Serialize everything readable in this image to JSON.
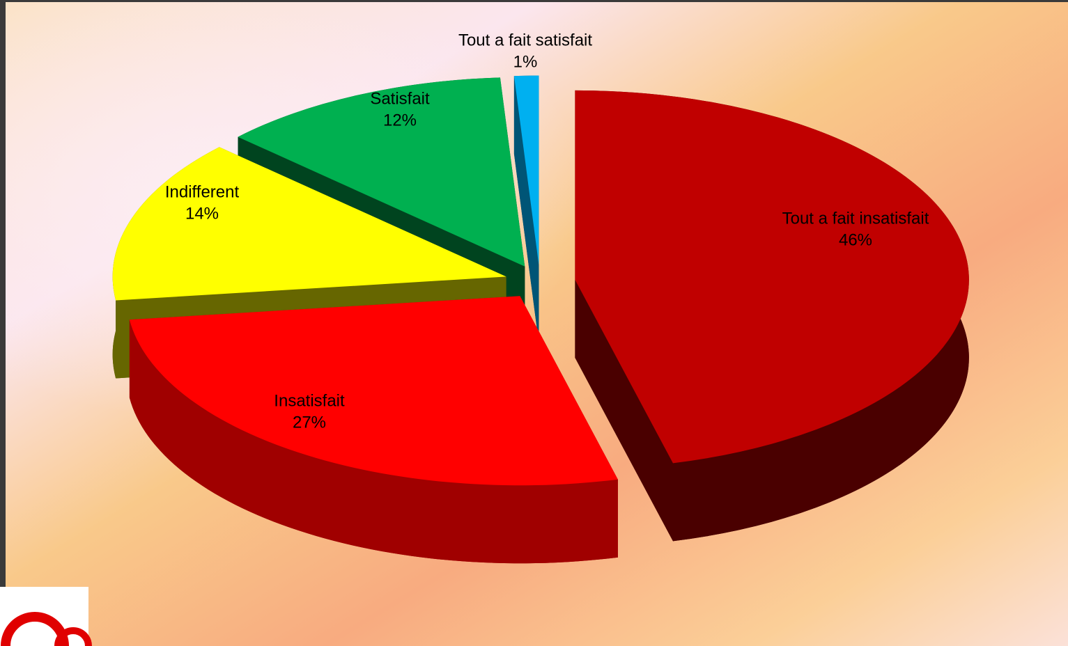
{
  "chart_data": {
    "type": "pie",
    "categories": [
      "Tout a fait insatisfait",
      "Insatisfait",
      "Indifferent",
      "Satisfait",
      "Tout a fait satisfait"
    ],
    "values": [
      46,
      27,
      14,
      12,
      1
    ],
    "value_labels": [
      "46%",
      "27%",
      "14%",
      "12%",
      "1%"
    ],
    "colors": [
      "#c00000",
      "#ff0000",
      "#ffff00",
      "#00b050",
      "#00b0f0"
    ],
    "side_colors": [
      "#4a0000",
      "#a00000",
      "#666600",
      "#00441f",
      "#005576"
    ],
    "three_d": true,
    "exploded": true
  }
}
